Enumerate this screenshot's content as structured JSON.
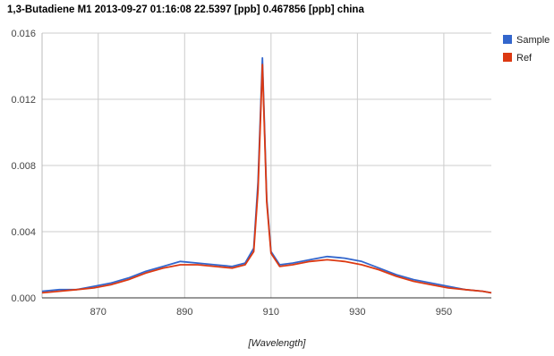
{
  "chart_data": {
    "type": "line",
    "title": "1,3-Butadiene M1 2013-09-27 01:16:08 22.5397 [ppb] 0.467856 [ppb] china",
    "xlabel": "[Wavelength]",
    "ylabel": "",
    "xlim": [
      857,
      961
    ],
    "ylim": [
      0,
      0.016
    ],
    "xticks": [
      870,
      890,
      910,
      930,
      950
    ],
    "yticks": [
      0.0,
      0.004,
      0.008,
      0.012,
      0.016
    ],
    "ytick_labels": [
      "0.000",
      "0.004",
      "0.008",
      "0.012",
      "0.016"
    ],
    "grid": true,
    "legend_position": "top-right",
    "x": [
      857,
      861,
      865,
      869,
      873,
      877,
      881,
      885,
      889,
      893,
      897,
      901,
      904,
      906,
      907,
      908,
      909,
      910,
      912,
      915,
      919,
      923,
      927,
      931,
      935,
      939,
      943,
      947,
      951,
      955,
      959,
      961
    ],
    "series": [
      {
        "name": "Sample",
        "color": "#3366cc",
        "values": [
          0.0004,
          0.0005,
          0.0005,
          0.0007,
          0.0009,
          0.0012,
          0.0016,
          0.0019,
          0.0022,
          0.0021,
          0.002,
          0.0019,
          0.0021,
          0.003,
          0.007,
          0.0145,
          0.006,
          0.0028,
          0.002,
          0.0021,
          0.0023,
          0.0025,
          0.0024,
          0.0022,
          0.0018,
          0.0014,
          0.0011,
          0.0009,
          0.0007,
          0.0005,
          0.0004,
          0.0003
        ]
      },
      {
        "name": "Ref",
        "color": "#dc3912",
        "values": [
          0.0003,
          0.0004,
          0.0005,
          0.0006,
          0.0008,
          0.0011,
          0.0015,
          0.0018,
          0.002,
          0.002,
          0.0019,
          0.0018,
          0.002,
          0.0028,
          0.0065,
          0.0141,
          0.0058,
          0.0027,
          0.0019,
          0.002,
          0.0022,
          0.0023,
          0.0022,
          0.002,
          0.0017,
          0.0013,
          0.001,
          0.0008,
          0.0006,
          0.0005,
          0.0004,
          0.0003
        ]
      }
    ]
  }
}
